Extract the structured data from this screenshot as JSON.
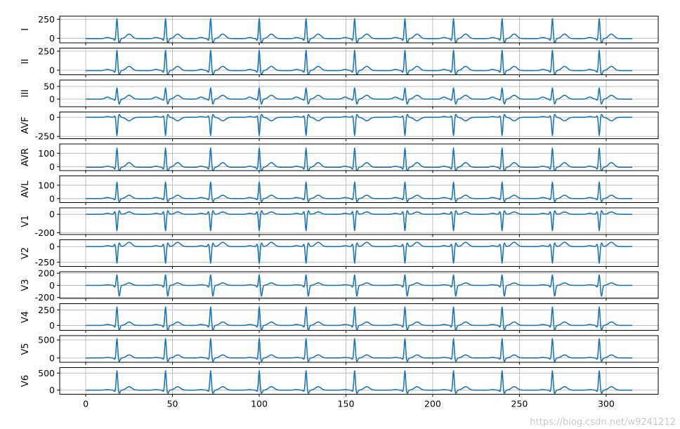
{
  "chart_data": {
    "type": "line",
    "title": "",
    "xlabel": "",
    "x_range": [
      0,
      315
    ],
    "x_ticks": [
      0,
      50,
      100,
      150,
      200,
      250,
      300
    ],
    "grid": true,
    "series_color": "#1f77b4",
    "beat_positions": [
      18,
      46,
      72,
      100,
      127,
      155,
      184,
      212,
      240,
      269,
      296
    ],
    "leads": [
      {
        "name": "I",
        "ylim": [
          -60,
          290
        ],
        "yticks": [
          0,
          250
        ],
        "baseline": -5,
        "p": 15,
        "q": -25,
        "r": 265,
        "s": -60,
        "t": 60
      },
      {
        "name": "II",
        "ylim": [
          -60,
          290
        ],
        "yticks": [
          0,
          250
        ],
        "baseline": -5,
        "p": 15,
        "q": -25,
        "r": 270,
        "s": -60,
        "t": 55
      },
      {
        "name": "III",
        "ylim": [
          -30,
          75
        ],
        "yticks": [
          0,
          50
        ],
        "baseline": 0,
        "p": 8,
        "q": -5,
        "r": 45,
        "s": -20,
        "t": 15
      },
      {
        "name": "AVF",
        "ylim": [
          -280,
          70
        ],
        "yticks": [
          -250,
          0
        ],
        "baseline": 0,
        "p": 10,
        "q": 20,
        "r": -240,
        "s": 40,
        "t": -45
      },
      {
        "name": "AVR",
        "ylim": [
          -30,
          170
        ],
        "yticks": [
          0,
          100
        ],
        "baseline": -5,
        "p": 8,
        "q": -15,
        "r": 145,
        "s": -30,
        "t": 35
      },
      {
        "name": "AVL",
        "ylim": [
          -30,
          170
        ],
        "yticks": [
          0,
          100
        ],
        "baseline": 0,
        "p": 8,
        "q": -10,
        "r": 125,
        "s": -25,
        "t": 25
      },
      {
        "name": "V1",
        "ylim": [
          -220,
          70
        ],
        "yticks": [
          -200,
          0
        ],
        "baseline": 0,
        "p": 10,
        "q": 30,
        "r": -180,
        "s": 40,
        "t": 25
      },
      {
        "name": "V2",
        "ylim": [
          -320,
          110
        ],
        "yticks": [
          -250,
          0
        ],
        "baseline": 0,
        "p": 15,
        "q": 40,
        "r": -270,
        "s": 60,
        "t": 70
      },
      {
        "name": "V3",
        "ylim": [
          -215,
          225
        ],
        "yticks": [
          -200,
          0,
          200
        ],
        "baseline": 0,
        "p": 10,
        "q": -30,
        "r": 180,
        "s": -180,
        "t": 40
      },
      {
        "name": "V4",
        "ylim": [
          -80,
          350
        ],
        "yticks": [
          0,
          250
        ],
        "baseline": 0,
        "p": 15,
        "q": -30,
        "r": 300,
        "s": -80,
        "t": 55
      },
      {
        "name": "V5",
        "ylim": [
          -120,
          620
        ],
        "yticks": [
          0,
          500
        ],
        "baseline": 0,
        "p": 15,
        "q": -40,
        "r": 540,
        "s": -100,
        "t": 85
      },
      {
        "name": "V6",
        "ylim": [
          -120,
          660
        ],
        "yticks": [
          0,
          500
        ],
        "baseline": 0,
        "p": 15,
        "q": -40,
        "r": 570,
        "s": -100,
        "t": 100
      }
    ]
  },
  "watermark": "https://blog.csdn.net/w9241212"
}
